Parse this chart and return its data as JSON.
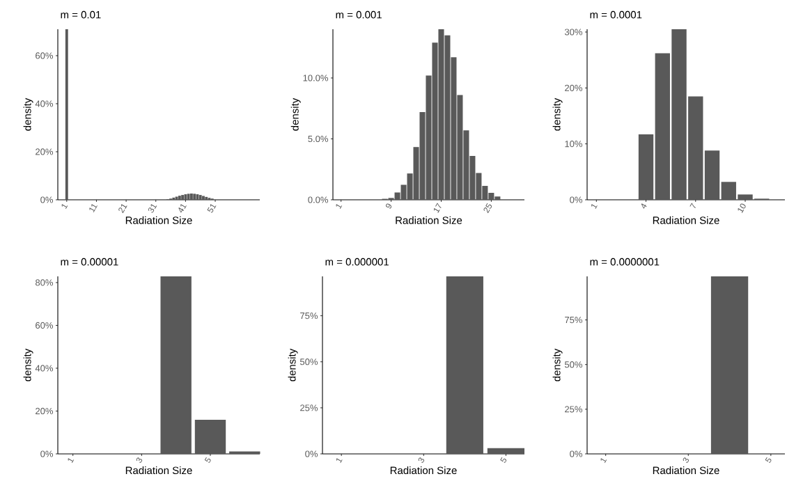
{
  "chart_data": [
    {
      "type": "bar",
      "title": "m = 0.01",
      "xlabel": "Radiation Size",
      "ylabel": "density",
      "color": "#595959",
      "x": [
        1,
        35,
        36,
        37,
        38,
        39,
        40,
        41,
        42,
        43,
        44,
        45,
        46,
        47,
        48,
        49,
        50
      ],
      "values": [
        71,
        0.2,
        0.5,
        0.9,
        1.3,
        1.7,
        2.0,
        2.3,
        2.5,
        2.6,
        2.5,
        2.3,
        2.0,
        1.6,
        1.2,
        0.8,
        0.5
      ],
      "xlim": [
        -2,
        66
      ],
      "ylim": [
        0,
        71
      ],
      "xticks": [
        1,
        11,
        21,
        31,
        41,
        51
      ],
      "yticks": [
        {
          "value": 0,
          "label": "0%"
        },
        {
          "value": 20,
          "label": "20%"
        },
        {
          "value": 40,
          "label": "40%"
        },
        {
          "value": 60,
          "label": "60%"
        }
      ]
    },
    {
      "type": "bar",
      "title": "m = 0.001",
      "xlabel": "Radiation Size",
      "ylabel": "density",
      "color": "#595959",
      "x": [
        8,
        9,
        10,
        11,
        12,
        13,
        14,
        15,
        16,
        17,
        18,
        19,
        20,
        21,
        22,
        23,
        24,
        25,
        26
      ],
      "values": [
        0.08,
        0.15,
        0.6,
        1.23,
        2.16,
        4.33,
        7.2,
        10.2,
        12.9,
        14.0,
        13.5,
        11.7,
        8.6,
        5.7,
        3.6,
        2.2,
        1.14,
        0.57,
        0.27
      ],
      "xlim": [
        -0.3,
        30.3
      ],
      "ylim": [
        0,
        14
      ],
      "xticks": [
        1,
        9,
        17,
        25
      ],
      "yticks": [
        {
          "value": 0,
          "label": "0.0%"
        },
        {
          "value": 5,
          "label": "5.0%"
        },
        {
          "value": 10,
          "label": "10.0%"
        }
      ]
    },
    {
      "type": "bar",
      "title": "m = 0.0001",
      "xlabel": "Radiation Size",
      "ylabel": "density",
      "color": "#595959",
      "x": [
        4,
        5,
        6,
        7,
        8,
        9,
        10,
        11
      ],
      "values": [
        11.7,
        26.2,
        30.5,
        18.5,
        8.8,
        3.2,
        0.95,
        0.2
      ],
      "xlim": [
        0.44,
        12.4
      ],
      "ylim": [
        0,
        30.5
      ],
      "xticks": [
        1,
        4,
        7,
        10
      ],
      "yticks": [
        {
          "value": 0,
          "label": "0%"
        },
        {
          "value": 10,
          "label": "10%"
        },
        {
          "value": 20,
          "label": "20%"
        },
        {
          "value": 30,
          "label": "30%"
        }
      ]
    },
    {
      "type": "bar",
      "title": "m = 0.00001",
      "xlabel": "Radiation Size",
      "ylabel": "density",
      "color": "#595959",
      "x": [
        4,
        5,
        6
      ],
      "values": [
        82.9,
        15.9,
        1.1
      ],
      "xlim": [
        0.56,
        6.44
      ],
      "ylim": [
        0,
        82.9
      ],
      "xticks": [
        1,
        3,
        5
      ],
      "yticks": [
        {
          "value": 0,
          "label": "0%"
        },
        {
          "value": 20,
          "label": "20%"
        },
        {
          "value": 40,
          "label": "40%"
        },
        {
          "value": 60,
          "label": "60%"
        },
        {
          "value": 80,
          "label": "80%"
        }
      ]
    },
    {
      "type": "bar",
      "title": "m = 0.000001",
      "xlabel": "Radiation Size",
      "ylabel": "density",
      "color": "#595959",
      "x": [
        4,
        5
      ],
      "values": [
        96.4,
        3.1
      ],
      "xlim": [
        0.54,
        5.45
      ],
      "ylim": [
        0,
        96.4
      ],
      "xticks": [
        1,
        3,
        5
      ],
      "yticks": [
        {
          "value": 0,
          "label": "0%"
        },
        {
          "value": 25,
          "label": "25%"
        },
        {
          "value": 50,
          "label": "50%"
        },
        {
          "value": 75,
          "label": "75%"
        }
      ]
    },
    {
      "type": "bar",
      "title": "m = 0.0000001",
      "xlabel": "Radiation Size",
      "ylabel": "density",
      "color": "#595959",
      "x": [
        4
      ],
      "values": [
        99.4
      ],
      "xlim": [
        0.55,
        5.34
      ],
      "ylim": [
        0,
        99.4
      ],
      "xticks": [
        1,
        3,
        5
      ],
      "yticks": [
        {
          "value": 0,
          "label": "0%"
        },
        {
          "value": 25,
          "label": "25%"
        },
        {
          "value": 50,
          "label": "50%"
        },
        {
          "value": 75,
          "label": "75%"
        }
      ]
    }
  ]
}
